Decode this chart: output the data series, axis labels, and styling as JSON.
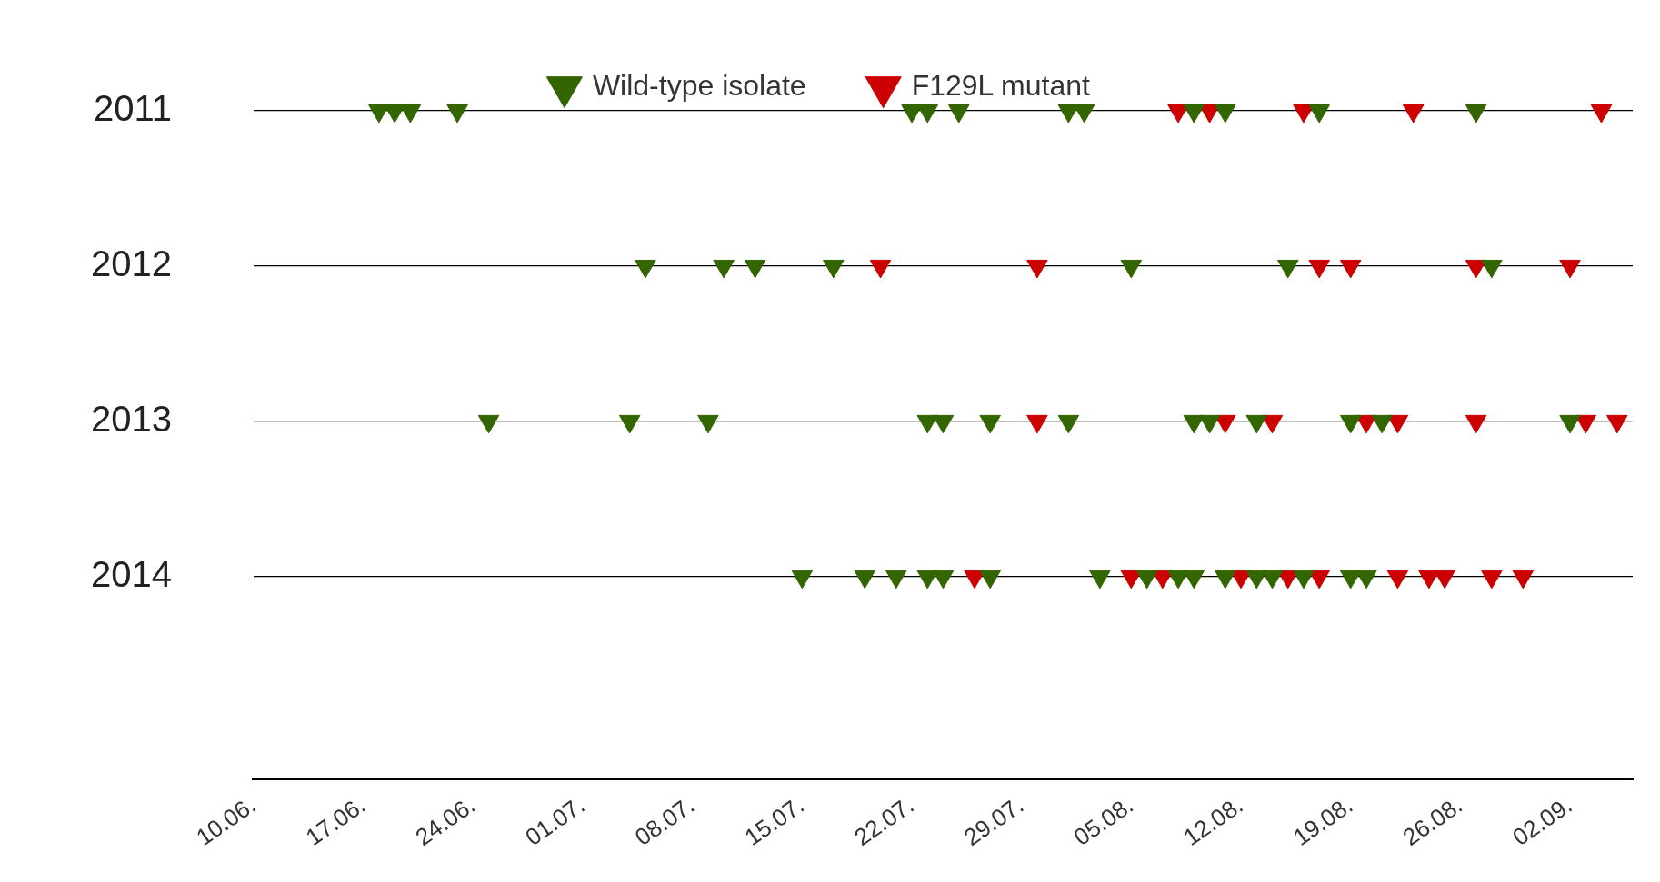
{
  "chart_data": {
    "type": "scatter",
    "marker": "triangle",
    "legend": "top",
    "grid": "y",
    "xlim": [
      "--06-10",
      "--09-06"
    ],
    "xticks": [
      {
        "value": "--06-10",
        "label": "10.06."
      },
      {
        "value": "--06-17",
        "label": "17.06."
      },
      {
        "value": "--06-24",
        "label": "24.06."
      },
      {
        "value": "--07-01",
        "label": "01.07."
      },
      {
        "value": "--07-08",
        "label": "08.07."
      },
      {
        "value": "--07-15",
        "label": "15.07."
      },
      {
        "value": "--07-22",
        "label": "22.07."
      },
      {
        "value": "--07-29",
        "label": "29.07."
      },
      {
        "value": "--08-05",
        "label": "05.08."
      },
      {
        "value": "--08-12",
        "label": "12.08."
      },
      {
        "value": "--08-19",
        "label": "19.08."
      },
      {
        "value": "--08-26",
        "label": "26.08."
      },
      {
        "value": "--09-02",
        "label": "02.09."
      }
    ],
    "ylim": [
      2015.3,
      2011
    ],
    "yticks": [
      2011,
      2012,
      2013,
      2014
    ],
    "series": [
      {
        "name": "Wild-type isolate",
        "color": "#336600",
        "x": [
          "--06-18",
          "--06-19",
          "--06-20",
          "--06-23",
          "--07-22",
          "--07-23",
          "--07-25",
          "--08-01",
          "--08-02",
          "--08-09",
          "--08-11",
          "--08-17",
          "--08-27",
          "--07-05",
          "--07-10",
          "--07-12",
          "--07-17",
          "--08-05",
          "--08-15",
          "--08-28",
          "--06-25",
          "--07-04",
          "--07-09",
          "--07-23",
          "--07-24",
          "--07-27",
          "--08-01",
          "--08-09",
          "--08-10",
          "--08-13",
          "--08-19",
          "--08-21",
          "--09-02",
          "--07-15",
          "--07-19",
          "--07-21",
          "--07-23",
          "--07-24",
          "--07-27",
          "--08-03",
          "--08-06",
          "--08-08",
          "--08-09",
          "--08-11",
          "--08-13",
          "--08-14",
          "--08-16",
          "--08-19",
          "--08-20"
        ],
        "values": [
          2011,
          2011,
          2011,
          2011,
          2011,
          2011,
          2011,
          2011,
          2011,
          2011,
          2011,
          2011,
          2011,
          2012,
          2012,
          2012,
          2012,
          2012,
          2012,
          2012,
          2013,
          2013,
          2013,
          2013,
          2013,
          2013,
          2013,
          2013,
          2013,
          2013,
          2013,
          2013,
          2013,
          2014,
          2014,
          2014,
          2014,
          2014,
          2014,
          2014,
          2014,
          2014,
          2014,
          2014,
          2014,
          2014,
          2014,
          2014,
          2014
        ]
      },
      {
        "name": "F129L mutant",
        "color": "#cc0000",
        "x": [
          "--08-08",
          "--08-10",
          "--08-16",
          "--08-23",
          "--09-04",
          "--07-20",
          "--07-30",
          "--08-17",
          "--08-19",
          "--08-27",
          "--09-02",
          "--07-30",
          "--08-11",
          "--08-14",
          "--08-20",
          "--08-22",
          "--08-27",
          "--09-03",
          "--09-05",
          "--07-26",
          "--08-05",
          "--08-07",
          "--08-12",
          "--08-15",
          "--08-17",
          "--08-22",
          "--08-24",
          "--08-25",
          "--08-28",
          "--08-30"
        ],
        "values": [
          2011,
          2011,
          2011,
          2011,
          2011,
          2012,
          2012,
          2012,
          2012,
          2012,
          2012,
          2013,
          2013,
          2013,
          2013,
          2013,
          2013,
          2013,
          2013,
          2014,
          2014,
          2014,
          2014,
          2014,
          2014,
          2014,
          2014,
          2014,
          2014,
          2014
        ]
      }
    ]
  }
}
